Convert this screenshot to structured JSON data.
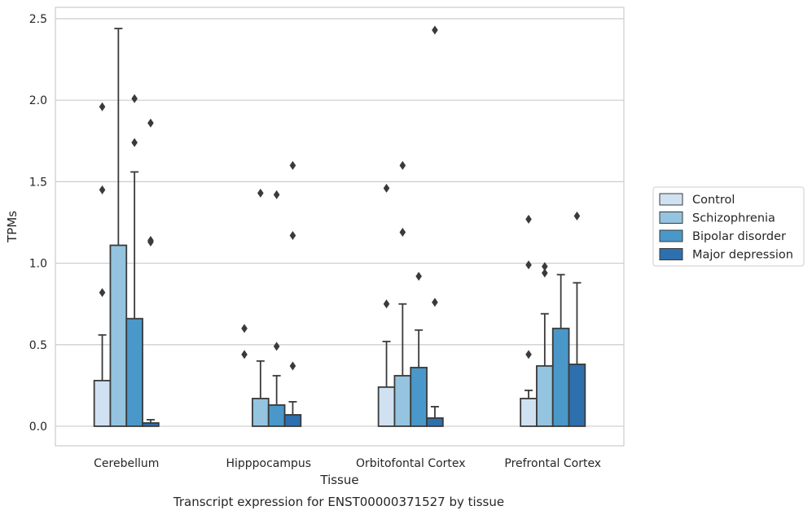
{
  "chart_data": {
    "type": "bar",
    "subtype": "box-bar-overlay",
    "caption": "Transcript expression for ENST00000371527 by tissue",
    "xlabel": "Tissue",
    "ylabel": "TPMs",
    "ylim": [
      -0.12,
      2.57
    ],
    "yticks": [
      0.0,
      0.5,
      1.0,
      1.5,
      2.0,
      2.5
    ],
    "ytick_labels": [
      "0.0",
      "0.5",
      "1.0",
      "1.5",
      "2.0",
      "2.5"
    ],
    "grid": "horizontal",
    "legend_position": "right",
    "categories": [
      "Cerebellum",
      "Hipppocampus",
      "Orbitofontal Cortex",
      "Prefrontal Cortex"
    ],
    "series": [
      {
        "name": "Control",
        "color": "#d0e1f2",
        "values": [
          0.28,
          0.0,
          0.24,
          0.17
        ],
        "whisker_high": [
          0.56,
          0.0,
          0.52,
          0.22
        ],
        "outliers": [
          [
            0.82,
            1.45,
            1.96
          ],
          [
            0.44,
            0.6
          ],
          [
            0.75,
            1.46
          ],
          [
            0.44,
            0.99,
            1.27
          ]
        ]
      },
      {
        "name": "Schizophrenia",
        "color": "#94c4df",
        "values": [
          1.11,
          0.17,
          0.31,
          0.37
        ],
        "whisker_high": [
          2.44,
          0.4,
          0.75,
          0.69
        ],
        "outliers": [
          [],
          [
            1.43
          ],
          [
            1.19,
            1.6
          ],
          [
            0.94,
            0.98
          ]
        ]
      },
      {
        "name": "Bipolar disorder",
        "color": "#4a98c9",
        "values": [
          0.66,
          0.13,
          0.36,
          0.6
        ],
        "whisker_high": [
          1.56,
          0.31,
          0.59,
          0.93
        ],
        "outliers": [
          [
            1.74,
            2.01
          ],
          [
            0.49,
            1.42
          ],
          [
            0.92
          ],
          []
        ]
      },
      {
        "name": "Major depression",
        "color": "#2e6fae",
        "values": [
          0.02,
          0.07,
          0.05,
          0.38
        ],
        "whisker_high": [
          0.04,
          0.15,
          0.12,
          0.88
        ],
        "outliers": [
          [
            1.13,
            1.14,
            1.86
          ],
          [
            0.37,
            1.17,
            1.6
          ],
          [
            0.76,
            2.43
          ],
          [
            1.29
          ]
        ]
      }
    ]
  }
}
